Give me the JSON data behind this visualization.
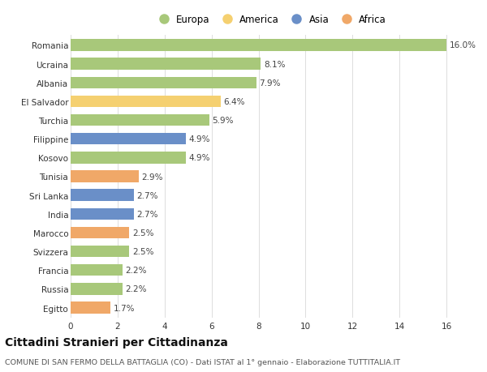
{
  "categories": [
    "Romania",
    "Ucraina",
    "Albania",
    "El Salvador",
    "Turchia",
    "Filippine",
    "Kosovo",
    "Tunisia",
    "Sri Lanka",
    "India",
    "Marocco",
    "Svizzera",
    "Francia",
    "Russia",
    "Egitto"
  ],
  "values": [
    16.0,
    8.1,
    7.9,
    6.4,
    5.9,
    4.9,
    4.9,
    2.9,
    2.7,
    2.7,
    2.5,
    2.5,
    2.2,
    2.2,
    1.7
  ],
  "continents": [
    "Europa",
    "Europa",
    "Europa",
    "America",
    "Europa",
    "Asia",
    "Europa",
    "Africa",
    "Asia",
    "Asia",
    "Africa",
    "Europa",
    "Europa",
    "Europa",
    "Africa"
  ],
  "continent_colors": {
    "Europa": "#a8c87a",
    "America": "#f5d070",
    "Asia": "#6a8fc8",
    "Africa": "#f0a868"
  },
  "legend_order": [
    "Europa",
    "America",
    "Asia",
    "Africa"
  ],
  "title": "Cittadini Stranieri per Cittadinanza",
  "subtitle": "COMUNE DI SAN FERMO DELLA BATTAGLIA (CO) - Dati ISTAT al 1° gennaio - Elaborazione TUTTITALIA.IT",
  "xlim": [
    0,
    17
  ],
  "xticks": [
    0,
    2,
    4,
    6,
    8,
    10,
    12,
    14,
    16
  ],
  "background_color": "#ffffff",
  "grid_color": "#dddddd",
  "bar_height": 0.62,
  "label_fontsize": 7.5,
  "tick_fontsize": 7.5,
  "title_fontsize": 10,
  "subtitle_fontsize": 6.8,
  "legend_fontsize": 8.5
}
